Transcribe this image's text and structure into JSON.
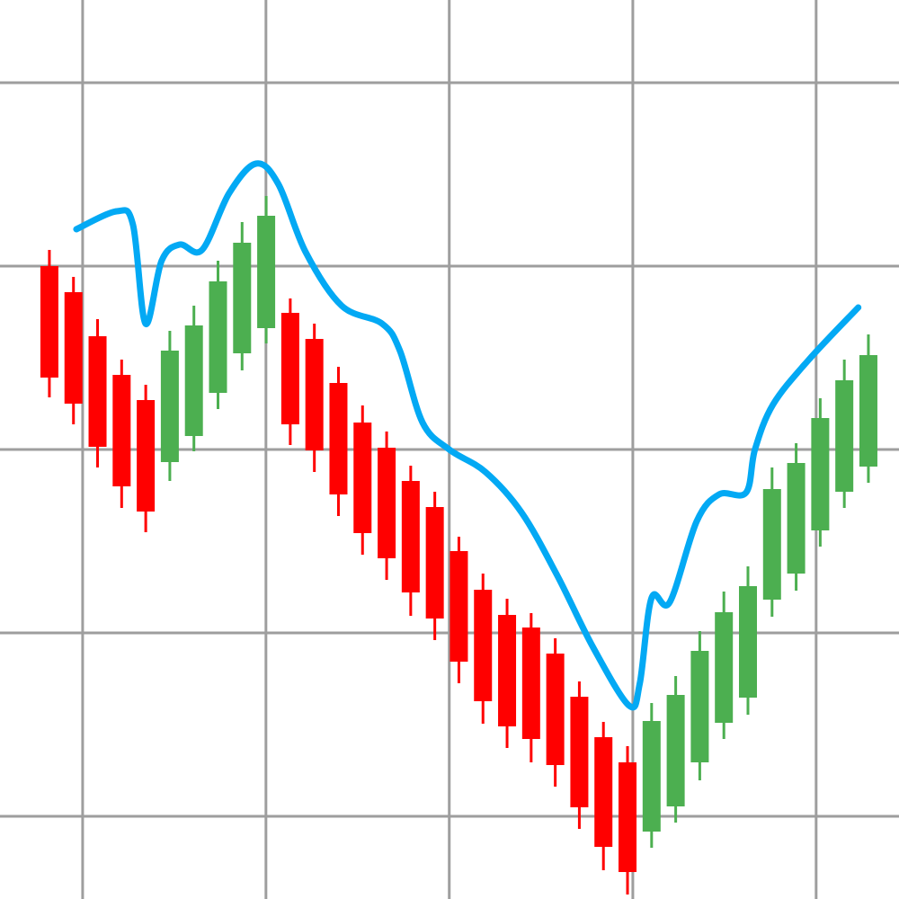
{
  "chart_data": {
    "type": "candlestick",
    "title": "",
    "xlabel": "",
    "ylabel": "",
    "xlim": [
      -1.05,
      36.27
    ],
    "ylim": [
      0,
      1000
    ],
    "grid": true,
    "grid_x": [
      2.38,
      9.99,
      17.6,
      25.22,
      32.83
    ],
    "grid_y": [
      92,
      296,
      500,
      704,
      908
    ],
    "colors": {
      "up": "#4caf50",
      "down": "#ff0000",
      "ma": "#03a9f4",
      "grid": "#9e9e9e"
    },
    "candles": [
      [
        704,
        722,
        558,
        580
      ],
      [
        675,
        692,
        528,
        551
      ],
      [
        626,
        645,
        480,
        503
      ],
      [
        583,
        600,
        435,
        459
      ],
      [
        555,
        572,
        408,
        431
      ],
      [
        486,
        632,
        465,
        610
      ],
      [
        515,
        660,
        498,
        638
      ],
      [
        563,
        710,
        545,
        687
      ],
      [
        607,
        753,
        588,
        730
      ],
      [
        635,
        782,
        618,
        760
      ],
      [
        652,
        668,
        505,
        528
      ],
      [
        623,
        640,
        475,
        499
      ],
      [
        574,
        592,
        426,
        450
      ],
      [
        530,
        549,
        383,
        407
      ],
      [
        502,
        520,
        355,
        379
      ],
      [
        465,
        482,
        315,
        341
      ],
      [
        436,
        453,
        288,
        312
      ],
      [
        387,
        403,
        240,
        264
      ],
      [
        344,
        362,
        195,
        220
      ],
      [
        316,
        334,
        168,
        192
      ],
      [
        302,
        318,
        152,
        178
      ],
      [
        273,
        290,
        125,
        149
      ],
      [
        225,
        242,
        78,
        102
      ],
      [
        180,
        197,
        32,
        58
      ],
      [
        152,
        170,
        5,
        30
      ],
      [
        75,
        218,
        57,
        198
      ],
      [
        103,
        248,
        85,
        227
      ],
      [
        152,
        298,
        132,
        276
      ],
      [
        196,
        342,
        178,
        319
      ],
      [
        224,
        370,
        205,
        348
      ],
      [
        333,
        480,
        314,
        456
      ],
      [
        362,
        507,
        343,
        485
      ],
      [
        410,
        557,
        392,
        535
      ],
      [
        453,
        600,
        435,
        577
      ],
      [
        481,
        628,
        463,
        605
      ]
    ],
    "candle_fields": [
      "open",
      "high",
      "low",
      "close"
    ],
    "moving_average": [
      [
        2.12,
        745
      ],
      [
        3.8,
        765
      ],
      [
        4.47,
        750
      ],
      [
        4.99,
        640
      ],
      [
        5.66,
        710
      ],
      [
        6.41,
        728
      ],
      [
        7.34,
        722
      ],
      [
        8.46,
        785
      ],
      [
        9.58,
        818
      ],
      [
        10.51,
        795
      ],
      [
        11.63,
        720
      ],
      [
        13.13,
        660
      ],
      [
        14.81,
        640
      ],
      [
        15.55,
        610
      ],
      [
        16.49,
        530
      ],
      [
        17.6,
        500
      ],
      [
        19.1,
        475
      ],
      [
        20.6,
        430
      ],
      [
        22.08,
        360
      ],
      [
        23.57,
        280
      ],
      [
        25.07,
        215
      ],
      [
        25.51,
        240
      ],
      [
        26.0,
        335
      ],
      [
        26.75,
        330
      ],
      [
        27.87,
        420
      ],
      [
        28.8,
        450
      ],
      [
        29.92,
        452
      ],
      [
        30.29,
        500
      ],
      [
        31.04,
        550
      ],
      [
        32.53,
        600
      ],
      [
        34.58,
        658
      ]
    ]
  }
}
